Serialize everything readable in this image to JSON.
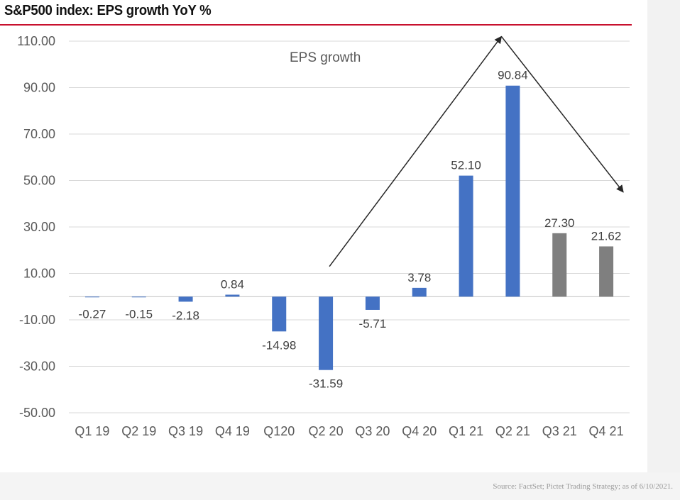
{
  "title": "S&P500 index: EPS growth YoY %",
  "source": "Source: FactSet; Pictet Trading Strategy; as of 6/10/2021.",
  "colors": {
    "title_rule": "#c8102e",
    "actual_bar": "#4472c4",
    "estimate_bar": "#7f7f7f",
    "gridline": "#d9d9d9",
    "arrow": "#262626"
  },
  "chart_data": {
    "type": "bar",
    "title": "",
    "xlabel": "",
    "ylabel": "",
    "ylim": [
      -50,
      110
    ],
    "yticks": [
      110,
      90,
      70,
      50,
      30,
      10,
      -10,
      -30,
      -50
    ],
    "ytick_labels": [
      "110.00",
      "90.00",
      "70.00",
      "50.00",
      "30.00",
      "10.00",
      "-10.00",
      "-30.00",
      "-50.00"
    ],
    "grid": true,
    "legend": "none",
    "categories": [
      "Q1 19",
      "Q2 19",
      "Q3 19",
      "Q4 19",
      "Q120",
      "Q2 20",
      "Q3 20",
      "Q4 20",
      "Q1 21",
      "Q2 21",
      "Q3 21",
      "Q4 21"
    ],
    "values": [
      -0.27,
      -0.15,
      -2.18,
      0.84,
      -14.98,
      -31.59,
      -5.71,
      3.78,
      52.1,
      90.84,
      27.3,
      21.62
    ],
    "value_labels": [
      "-0.27",
      "-0.15",
      "-2.18",
      "0.84",
      "-14.98",
      "-31.59",
      "-5.71",
      "3.78",
      "52.10",
      "90.84",
      "27.30",
      "21.62"
    ],
    "bar_colors": [
      "#4472c4",
      "#4472c4",
      "#4472c4",
      "#4472c4",
      "#4472c4",
      "#4472c4",
      "#4472c4",
      "#4472c4",
      "#4472c4",
      "#4472c4",
      "#7f7f7f",
      "#7f7f7f"
    ],
    "annotation": "EPS growth",
    "trend_arrow": {
      "up_start": {
        "category": "Q2 20",
        "value": 13
      },
      "peak": {
        "category": "Q2 21",
        "value": 112
      },
      "down_end": {
        "category": "Q4 21",
        "value": 45
      }
    }
  }
}
